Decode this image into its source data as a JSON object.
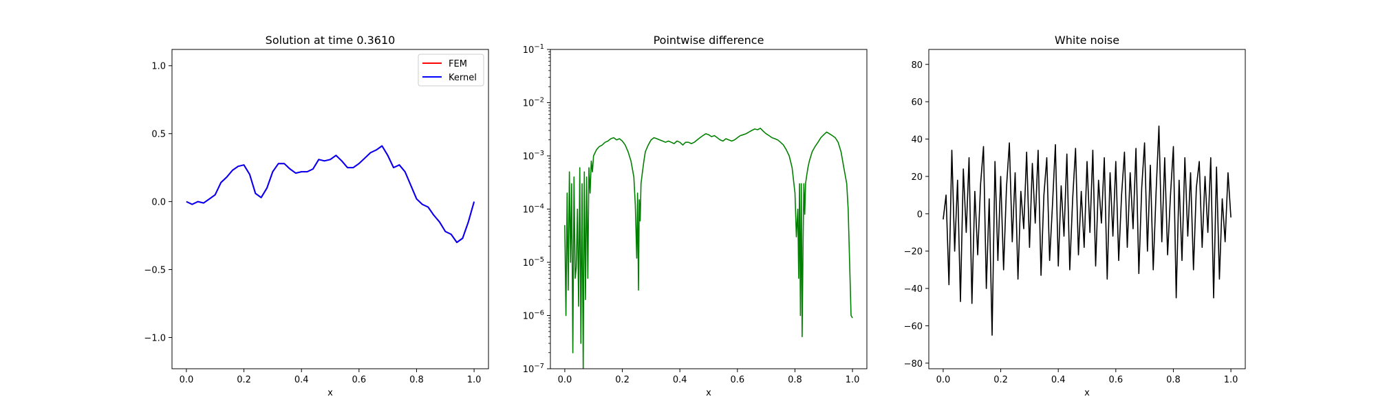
{
  "chart_data": [
    {
      "type": "line",
      "title": "Solution at time 0.3610",
      "xlabel": "x",
      "ylabel": "",
      "xlim": [
        -0.05,
        1.05
      ],
      "ylim": [
        -1.23,
        1.12
      ],
      "xticks": [
        0.0,
        0.2,
        0.4,
        0.6,
        0.8,
        1.0
      ],
      "xtick_labels": [
        "0.0",
        "0.2",
        "0.4",
        "0.6",
        "0.8",
        "1.0"
      ],
      "yticks": [
        -1.0,
        -0.5,
        0.0,
        0.5,
        1.0
      ],
      "ytick_labels": [
        "−1.0",
        "−0.5",
        "0.0",
        "0.5",
        "1.0"
      ],
      "grid": false,
      "legend": "top-right",
      "series": [
        {
          "name": "FEM",
          "color": "#ff0000",
          "x": [
            0.0,
            0.02,
            0.04,
            0.06,
            0.08,
            0.1,
            0.12,
            0.14,
            0.16,
            0.18,
            0.2,
            0.22,
            0.24,
            0.26,
            0.28,
            0.3,
            0.32,
            0.34,
            0.36,
            0.38,
            0.4,
            0.42,
            0.44,
            0.46,
            0.48,
            0.5,
            0.52,
            0.54,
            0.56,
            0.58,
            0.6,
            0.62,
            0.64,
            0.66,
            0.68,
            0.7,
            0.72,
            0.74,
            0.76,
            0.78,
            0.8,
            0.82,
            0.84,
            0.86,
            0.88,
            0.9,
            0.92,
            0.94,
            0.96,
            0.98,
            1.0
          ],
          "y": [
            0.0,
            -0.02,
            0.0,
            -0.01,
            0.02,
            0.05,
            0.14,
            0.18,
            0.23,
            0.26,
            0.27,
            0.2,
            0.06,
            0.03,
            0.1,
            0.22,
            0.28,
            0.28,
            0.24,
            0.21,
            0.22,
            0.22,
            0.24,
            0.31,
            0.3,
            0.31,
            0.34,
            0.3,
            0.25,
            0.25,
            0.28,
            0.32,
            0.36,
            0.38,
            0.41,
            0.34,
            0.25,
            0.27,
            0.22,
            0.12,
            0.02,
            -0.02,
            -0.04,
            -0.1,
            -0.15,
            -0.22,
            -0.24,
            -0.3,
            -0.27,
            -0.15,
            0.0
          ]
        },
        {
          "name": "Kernel",
          "color": "#0000ff",
          "x": [
            0.0,
            0.02,
            0.04,
            0.06,
            0.08,
            0.1,
            0.12,
            0.14,
            0.16,
            0.18,
            0.2,
            0.22,
            0.24,
            0.26,
            0.28,
            0.3,
            0.32,
            0.34,
            0.36,
            0.38,
            0.4,
            0.42,
            0.44,
            0.46,
            0.48,
            0.5,
            0.52,
            0.54,
            0.56,
            0.58,
            0.6,
            0.62,
            0.64,
            0.66,
            0.68,
            0.7,
            0.72,
            0.74,
            0.76,
            0.78,
            0.8,
            0.82,
            0.84,
            0.86,
            0.88,
            0.9,
            0.92,
            0.94,
            0.96,
            0.98,
            1.0
          ],
          "y": [
            0.0,
            -0.02,
            0.0,
            -0.01,
            0.02,
            0.05,
            0.14,
            0.18,
            0.23,
            0.26,
            0.27,
            0.2,
            0.06,
            0.03,
            0.1,
            0.22,
            0.28,
            0.28,
            0.24,
            0.21,
            0.22,
            0.22,
            0.24,
            0.31,
            0.3,
            0.31,
            0.34,
            0.3,
            0.25,
            0.25,
            0.28,
            0.32,
            0.36,
            0.38,
            0.41,
            0.34,
            0.25,
            0.27,
            0.22,
            0.12,
            0.02,
            -0.02,
            -0.04,
            -0.1,
            -0.15,
            -0.22,
            -0.24,
            -0.3,
            -0.27,
            -0.15,
            0.0
          ]
        }
      ]
    },
    {
      "type": "line",
      "title": "Pointwise difference",
      "xlabel": "x",
      "ylabel": "",
      "yscale": "log",
      "xlim": [
        -0.05,
        1.05
      ],
      "ylim": [
        1e-07,
        0.1
      ],
      "xticks": [
        0.0,
        0.2,
        0.4,
        0.6,
        0.8,
        1.0
      ],
      "xtick_labels": [
        "0.0",
        "0.2",
        "0.4",
        "0.6",
        "0.8",
        "1.0"
      ],
      "yticks": [
        1e-07,
        1e-06,
        1e-05,
        0.0001,
        0.001,
        0.01,
        0.1
      ],
      "ytick_exponents": [
        "−7",
        "−6",
        "−5",
        "−4",
        "−3",
        "−2",
        "−1"
      ],
      "ytick_base": "10",
      "grid": false,
      "series": [
        {
          "color": "#008000",
          "x": [
            0.0,
            0.004,
            0.008,
            0.012,
            0.016,
            0.02,
            0.024,
            0.028,
            0.032,
            0.036,
            0.04,
            0.044,
            0.048,
            0.052,
            0.056,
            0.06,
            0.064,
            0.068,
            0.072,
            0.076,
            0.08,
            0.084,
            0.088,
            0.092,
            0.096,
            0.1,
            0.11,
            0.12,
            0.13,
            0.14,
            0.15,
            0.16,
            0.17,
            0.18,
            0.19,
            0.2,
            0.21,
            0.22,
            0.23,
            0.24,
            0.245,
            0.25,
            0.253,
            0.256,
            0.259,
            0.262,
            0.265,
            0.27,
            0.275,
            0.28,
            0.29,
            0.3,
            0.31,
            0.32,
            0.33,
            0.34,
            0.35,
            0.36,
            0.37,
            0.38,
            0.39,
            0.4,
            0.41,
            0.42,
            0.43,
            0.44,
            0.45,
            0.46,
            0.47,
            0.48,
            0.49,
            0.5,
            0.51,
            0.52,
            0.53,
            0.54,
            0.55,
            0.56,
            0.57,
            0.58,
            0.59,
            0.6,
            0.61,
            0.62,
            0.63,
            0.64,
            0.65,
            0.66,
            0.67,
            0.68,
            0.69,
            0.7,
            0.71,
            0.72,
            0.73,
            0.74,
            0.75,
            0.76,
            0.77,
            0.78,
            0.79,
            0.8,
            0.805,
            0.81,
            0.813,
            0.816,
            0.819,
            0.822,
            0.825,
            0.828,
            0.831,
            0.834,
            0.837,
            0.84,
            0.845,
            0.85,
            0.86,
            0.87,
            0.88,
            0.89,
            0.9,
            0.91,
            0.92,
            0.93,
            0.94,
            0.95,
            0.96,
            0.97,
            0.98,
            0.985,
            0.99,
            0.995,
            1.0
          ],
          "y": [
            5e-05,
            1e-06,
            0.0002,
            3e-06,
            0.0005,
            1e-05,
            0.0003,
            2e-07,
            0.0004,
            5e-06,
            8e-06,
            0.0001,
            1.5e-06,
            0.0006,
            3e-07,
            0.0003,
            1e-07,
            0.0005,
            2e-06,
            0.0004,
            5e-06,
            0.0006,
            0.0002,
            0.0008,
            0.0005,
            0.001,
            0.0013,
            0.0015,
            0.0016,
            0.0018,
            0.0019,
            0.0021,
            0.0022,
            0.002,
            0.0021,
            0.0019,
            0.0016,
            0.0012,
            0.0008,
            0.0004,
            0.00012,
            1.2e-05,
            0.0002,
            3e-06,
            0.00015,
            6e-05,
            0.0003,
            0.0005,
            0.0008,
            0.0012,
            0.0016,
            0.002,
            0.0022,
            0.0021,
            0.002,
            0.0019,
            0.0018,
            0.0019,
            0.0018,
            0.0017,
            0.0019,
            0.0018,
            0.0016,
            0.0018,
            0.0018,
            0.0017,
            0.0018,
            0.002,
            0.0022,
            0.0024,
            0.0026,
            0.0025,
            0.0023,
            0.0024,
            0.0022,
            0.002,
            0.0019,
            0.0021,
            0.002,
            0.0019,
            0.002,
            0.0022,
            0.0024,
            0.0025,
            0.0026,
            0.0028,
            0.003,
            0.0032,
            0.0031,
            0.0033,
            0.0029,
            0.0026,
            0.0024,
            0.0022,
            0.0021,
            0.002,
            0.0018,
            0.0016,
            0.0013,
            0.001,
            0.0006,
            0.0002,
            3e-05,
            0.0001,
            5e-06,
            0.0003,
            1e-06,
            0.0003,
            4e-07,
            2e-05,
            0.0003,
            8e-05,
            0.0003,
            0.0004,
            0.0006,
            0.0008,
            0.0012,
            0.0015,
            0.0018,
            0.0022,
            0.0025,
            0.0028,
            0.0026,
            0.0024,
            0.0022,
            0.0018,
            0.0012,
            0.0006,
            0.0003,
            0.0001,
            1e-05,
            1e-06,
            9e-07
          ]
        }
      ]
    },
    {
      "type": "line",
      "title": "White noise",
      "xlabel": "x",
      "ylabel": "",
      "xlim": [
        -0.05,
        1.05
      ],
      "ylim": [
        -83,
        88
      ],
      "xticks": [
        0.0,
        0.2,
        0.4,
        0.6,
        0.8,
        1.0
      ],
      "xtick_labels": [
        "0.0",
        "0.2",
        "0.4",
        "0.6",
        "0.8",
        "1.0"
      ],
      "yticks": [
        -80,
        -60,
        -40,
        -20,
        0,
        20,
        40,
        60,
        80
      ],
      "ytick_labels": [
        "−80",
        "−60",
        "−40",
        "−20",
        "0",
        "20",
        "40",
        "60",
        "80"
      ],
      "grid": false,
      "series": [
        {
          "color": "#000000",
          "x": [
            0.0,
            0.01,
            0.02,
            0.03,
            0.04,
            0.05,
            0.06,
            0.07,
            0.08,
            0.09,
            0.1,
            0.11,
            0.12,
            0.13,
            0.14,
            0.15,
            0.16,
            0.17,
            0.18,
            0.19,
            0.2,
            0.21,
            0.22,
            0.23,
            0.24,
            0.25,
            0.26,
            0.27,
            0.28,
            0.29,
            0.3,
            0.31,
            0.32,
            0.33,
            0.34,
            0.35,
            0.36,
            0.37,
            0.38,
            0.39,
            0.4,
            0.41,
            0.42,
            0.43,
            0.44,
            0.45,
            0.46,
            0.47,
            0.48,
            0.49,
            0.5,
            0.51,
            0.52,
            0.53,
            0.54,
            0.55,
            0.56,
            0.57,
            0.58,
            0.59,
            0.6,
            0.61,
            0.62,
            0.63,
            0.64,
            0.65,
            0.66,
            0.67,
            0.68,
            0.69,
            0.7,
            0.71,
            0.72,
            0.73,
            0.74,
            0.75,
            0.76,
            0.77,
            0.78,
            0.79,
            0.8,
            0.81,
            0.82,
            0.83,
            0.84,
            0.85,
            0.86,
            0.87,
            0.88,
            0.89,
            0.9,
            0.91,
            0.92,
            0.93,
            0.94,
            0.95,
            0.96,
            0.97,
            0.98,
            0.99,
            1.0
          ],
          "y": [
            -3,
            10,
            -38,
            34,
            -20,
            18,
            -47,
            24,
            -10,
            30,
            -48,
            12,
            -22,
            16,
            36,
            -40,
            8,
            -65,
            28,
            -25,
            20,
            -30,
            14,
            38,
            -15,
            22,
            -35,
            12,
            -8,
            33,
            -18,
            27,
            -5,
            34,
            -33,
            10,
            30,
            -25,
            5,
            37,
            -28,
            15,
            -12,
            32,
            -30,
            8,
            35,
            -22,
            12,
            -18,
            28,
            -10,
            34,
            -28,
            18,
            -5,
            30,
            -35,
            22,
            -12,
            28,
            -25,
            10,
            33,
            -18,
            22,
            -8,
            35,
            -32,
            14,
            38,
            -20,
            26,
            -30,
            12,
            47,
            -15,
            30,
            -22,
            10,
            36,
            -45,
            18,
            -25,
            30,
            -12,
            22,
            -30,
            14,
            28,
            -18,
            20,
            -10,
            30,
            -45,
            25,
            -35,
            8,
            -15,
            22,
            -2
          ]
        }
      ]
    }
  ]
}
